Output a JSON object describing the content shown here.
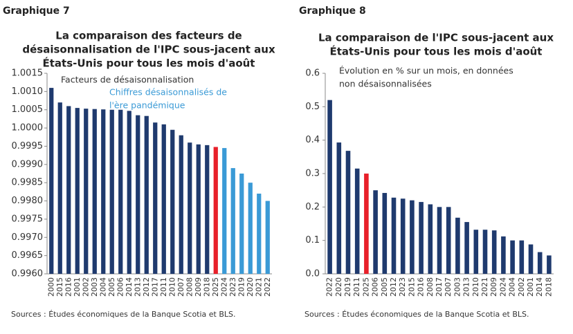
{
  "chart_data": [
    {
      "type": "bar",
      "header": "Graphique 7",
      "title": [
        "La comparaison des facteurs de",
        "désaisonnalisation de l'IPC sous-jacent aux",
        "États-Unis pour tous les mois d'août"
      ],
      "categories": [
        "2000",
        "2015",
        "2016",
        "2001",
        "2002",
        "2003",
        "2004",
        "2005",
        "2006",
        "2014",
        "2013",
        "2012",
        "2017",
        "2011",
        "2010",
        "2007",
        "2008",
        "2009",
        "2018",
        "2025",
        "2024",
        "2023",
        "2019",
        "2020",
        "2021",
        "2022"
      ],
      "values": [
        1.0011,
        1.0007,
        1.0006,
        1.00055,
        1.00053,
        1.00052,
        1.00051,
        1.0005,
        1.0005,
        1.00047,
        1.00035,
        1.00033,
        1.00015,
        1.0001,
        0.99995,
        0.9998,
        0.9996,
        0.99955,
        0.99953,
        0.99948,
        0.99945,
        0.9989,
        0.99875,
        0.9985,
        0.9982,
        0.998
      ],
      "colors": [
        "#1f3a6e",
        "#1f3a6e",
        "#1f3a6e",
        "#1f3a6e",
        "#1f3a6e",
        "#1f3a6e",
        "#1f3a6e",
        "#1f3a6e",
        "#1f3a6e",
        "#1f3a6e",
        "#1f3a6e",
        "#1f3a6e",
        "#1f3a6e",
        "#1f3a6e",
        "#1f3a6e",
        "#1f3a6e",
        "#1f3a6e",
        "#1f3a6e",
        "#1f3a6e",
        "#e8202a",
        "#3a9ad6",
        "#3a9ad6",
        "#3a9ad6",
        "#3a9ad6",
        "#3a9ad6",
        "#3a9ad6"
      ],
      "legend": [
        {
          "text": [
            "Facteurs de désaisonnalisation"
          ],
          "color": "#333333"
        },
        {
          "text": [
            "Chiffres désaisonnalisés de",
            "l'ère pandémique"
          ],
          "color": "#3a9ad6"
        }
      ],
      "ylim": [
        0.996,
        1.0015
      ],
      "yticks": [
        {
          "value": 0.996,
          "label": "0.9960"
        },
        {
          "value": 0.9965,
          "label": "0.9965"
        },
        {
          "value": 0.997,
          "label": "0.9970"
        },
        {
          "value": 0.9975,
          "label": "0.9975"
        },
        {
          "value": 0.998,
          "label": "0.9980"
        },
        {
          "value": 0.9985,
          "label": "0.9985"
        },
        {
          "value": 0.999,
          "label": "0.9990"
        },
        {
          "value": 0.9995,
          "label": "0.9995"
        },
        {
          "value": 1,
          "label": "1.0000"
        },
        {
          "value": 1.0005,
          "label": "1.0005"
        },
        {
          "value": 1.001,
          "label": "1.0010"
        },
        {
          "value": 1.0015,
          "label": "1.0015"
        }
      ],
      "source": "Sources : Études économiques de la Banque Scotia et BLS."
    },
    {
      "type": "bar",
      "header": "Graphique 8",
      "title": [
        "La comparaison de l'IPC sous-jacent aux",
        "États-Unis pour tous les mois d'août"
      ],
      "categories": [
        "2022",
        "2020",
        "2019",
        "2011",
        "2025",
        "2006",
        "2005",
        "2012",
        "2023",
        "2015",
        "2016",
        "2008",
        "2017",
        "2007",
        "2003",
        "2013",
        "2010",
        "2021",
        "2009",
        "2024",
        "2004",
        "2002",
        "2001",
        "2014",
        "2018"
      ],
      "values": [
        0.52,
        0.393,
        0.368,
        0.315,
        0.3,
        0.25,
        0.242,
        0.228,
        0.225,
        0.22,
        0.215,
        0.208,
        0.2,
        0.2,
        0.168,
        0.155,
        0.132,
        0.132,
        0.13,
        0.112,
        0.1,
        0.1,
        0.088,
        0.065,
        0.055
      ],
      "colors": [
        "#1f3a6e",
        "#1f3a6e",
        "#1f3a6e",
        "#1f3a6e",
        "#e8202a",
        "#1f3a6e",
        "#1f3a6e",
        "#1f3a6e",
        "#1f3a6e",
        "#1f3a6e",
        "#1f3a6e",
        "#1f3a6e",
        "#1f3a6e",
        "#1f3a6e",
        "#1f3a6e",
        "#1f3a6e",
        "#1f3a6e",
        "#1f3a6e",
        "#1f3a6e",
        "#1f3a6e",
        "#1f3a6e",
        "#1f3a6e",
        "#1f3a6e",
        "#1f3a6e",
        "#1f3a6e"
      ],
      "legend": [
        {
          "text": [
            "Évolution en % sur un mois, en données",
            "non désaisonnalisées"
          ],
          "color": "#333333"
        }
      ],
      "ylim": [
        0,
        0.6
      ],
      "yticks": [
        {
          "value": 0,
          "label": "0.0"
        },
        0.1,
        0.2,
        0.3,
        0.4,
        0.5,
        0.6
      ],
      "source": "Sources : Études économiques de la Banque Scotia et BLS."
    }
  ]
}
